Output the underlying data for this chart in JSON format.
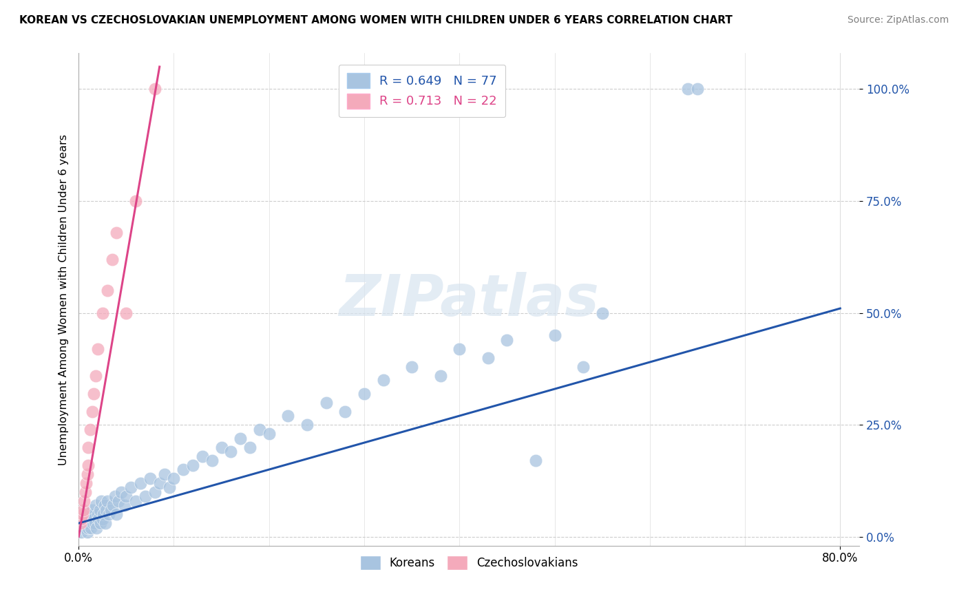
{
  "title": "KOREAN VS CZECHOSLOVAKIAN UNEMPLOYMENT AMONG WOMEN WITH CHILDREN UNDER 6 YEARS CORRELATION CHART",
  "source": "Source: ZipAtlas.com",
  "ylabel": "Unemployment Among Women with Children Under 6 years",
  "xlim": [
    0.0,
    0.82
  ],
  "ylim": [
    -0.02,
    1.08
  ],
  "ytick_labels": [
    "0.0%",
    "25.0%",
    "50.0%",
    "75.0%",
    "100.0%"
  ],
  "ytick_values": [
    0.0,
    0.25,
    0.5,
    0.75,
    1.0
  ],
  "legend_korean": "R = 0.649   N = 77",
  "legend_czech": "R = 0.713   N = 22",
  "korean_color": "#A8C4E0",
  "czech_color": "#F4AABB",
  "line_korean_color": "#2255AA",
  "line_czech_color": "#DD4488",
  "background_color": "#FFFFFF",
  "watermark": "ZIPatlas",
  "korean_line_x": [
    0.0,
    0.8
  ],
  "korean_line_y": [
    0.03,
    0.51
  ],
  "czech_line_x": [
    0.0,
    0.085
  ],
  "czech_line_y": [
    0.0,
    1.05
  ],
  "korean_x": [
    0.002,
    0.003,
    0.004,
    0.005,
    0.006,
    0.007,
    0.008,
    0.009,
    0.01,
    0.01,
    0.011,
    0.012,
    0.013,
    0.014,
    0.015,
    0.015,
    0.016,
    0.017,
    0.018,
    0.019,
    0.02,
    0.021,
    0.022,
    0.023,
    0.024,
    0.025,
    0.026,
    0.027,
    0.028,
    0.029,
    0.03,
    0.032,
    0.034,
    0.036,
    0.038,
    0.04,
    0.042,
    0.045,
    0.048,
    0.05,
    0.055,
    0.06,
    0.065,
    0.07,
    0.075,
    0.08,
    0.085,
    0.09,
    0.095,
    0.1,
    0.11,
    0.12,
    0.13,
    0.14,
    0.15,
    0.16,
    0.17,
    0.18,
    0.19,
    0.2,
    0.22,
    0.24,
    0.26,
    0.28,
    0.3,
    0.32,
    0.35,
    0.38,
    0.4,
    0.43,
    0.45,
    0.48,
    0.5,
    0.53,
    0.55,
    0.64,
    0.65
  ],
  "korean_y": [
    0.02,
    0.01,
    0.03,
    0.02,
    0.04,
    0.02,
    0.03,
    0.01,
    0.05,
    0.02,
    0.03,
    0.04,
    0.02,
    0.06,
    0.03,
    0.05,
    0.04,
    0.03,
    0.07,
    0.02,
    0.05,
    0.04,
    0.06,
    0.03,
    0.08,
    0.04,
    0.05,
    0.07,
    0.03,
    0.06,
    0.08,
    0.05,
    0.06,
    0.07,
    0.09,
    0.05,
    0.08,
    0.1,
    0.07,
    0.09,
    0.11,
    0.08,
    0.12,
    0.09,
    0.13,
    0.1,
    0.12,
    0.14,
    0.11,
    0.13,
    0.15,
    0.16,
    0.18,
    0.17,
    0.2,
    0.19,
    0.22,
    0.2,
    0.24,
    0.23,
    0.27,
    0.25,
    0.3,
    0.28,
    0.32,
    0.35,
    0.38,
    0.36,
    0.42,
    0.4,
    0.44,
    0.17,
    0.45,
    0.38,
    0.5,
    1.0,
    1.0
  ],
  "czech_x": [
    0.002,
    0.003,
    0.004,
    0.005,
    0.006,
    0.007,
    0.008,
    0.009,
    0.01,
    0.01,
    0.012,
    0.014,
    0.016,
    0.018,
    0.02,
    0.025,
    0.03,
    0.035,
    0.04,
    0.05,
    0.06,
    0.08
  ],
  "czech_y": [
    0.03,
    0.04,
    0.05,
    0.06,
    0.08,
    0.1,
    0.12,
    0.14,
    0.16,
    0.2,
    0.24,
    0.28,
    0.32,
    0.36,
    0.42,
    0.5,
    0.55,
    0.62,
    0.68,
    0.5,
    0.75,
    1.0
  ]
}
